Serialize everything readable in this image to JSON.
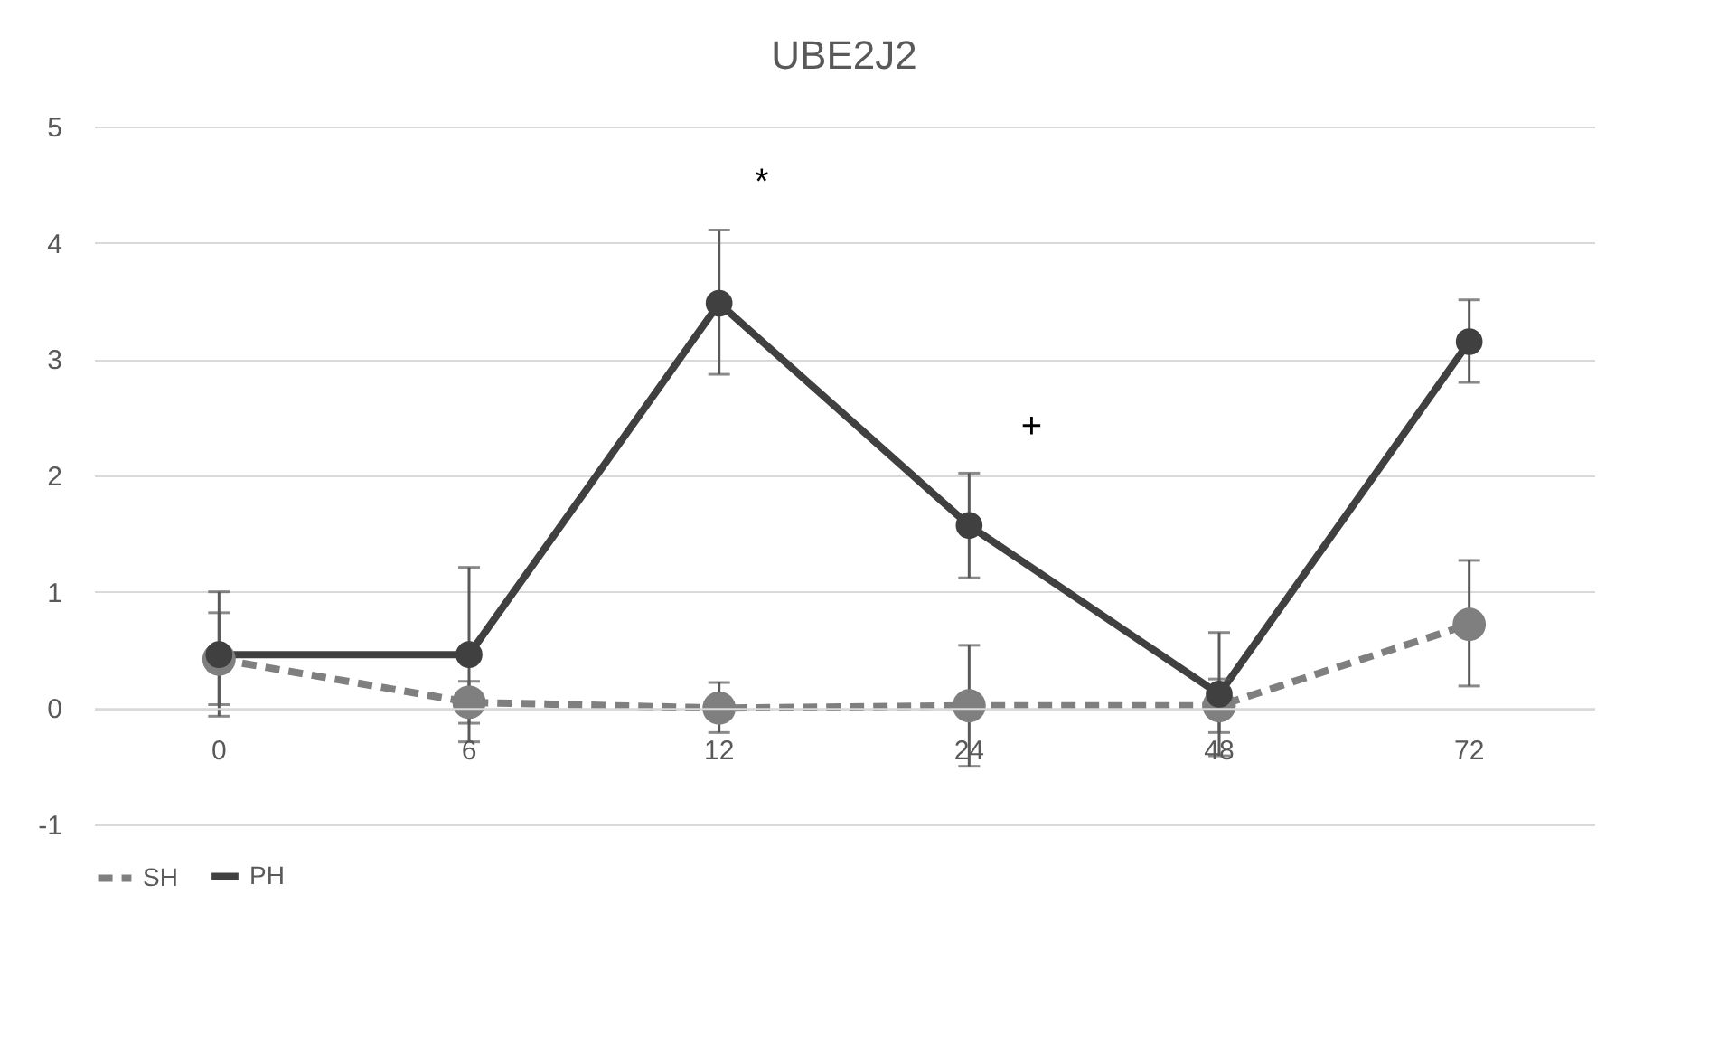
{
  "chart_data": {
    "type": "line",
    "title": "UBE2J2",
    "categories": [
      "0",
      "6",
      "12",
      "24",
      "48",
      "72"
    ],
    "series": [
      {
        "name": "SH",
        "color": "#7f7f7f",
        "line_style": "dashed",
        "values": [
          0.42,
          0.05,
          0.0,
          0.02,
          0.02,
          0.72
        ],
        "errors": [
          [
            0.03,
            0.82
          ],
          [
            -0.13,
            0.23
          ],
          [
            -0.21,
            0.22
          ],
          [
            -0.5,
            0.54
          ],
          [
            -0.21,
            0.25
          ],
          [
            0.19,
            1.27
          ]
        ]
      },
      {
        "name": "PH",
        "color": "#404040",
        "line_style": "solid",
        "values": [
          0.46,
          0.46,
          3.48,
          1.57,
          0.12,
          3.15
        ],
        "errors": [
          [
            -0.07,
            1.0
          ],
          [
            -0.29,
            1.21
          ],
          [
            2.87,
            4.11
          ],
          [
            1.12,
            2.02
          ],
          [
            -0.41,
            0.65
          ],
          [
            2.8,
            3.51
          ]
        ]
      }
    ],
    "ylim": [
      -1,
      5
    ],
    "yticks": [
      -1,
      0,
      1,
      2,
      3,
      4,
      5
    ],
    "grid": "y",
    "legend": "bottom",
    "marker": "circle",
    "annotations": [
      "*",
      "+"
    ]
  }
}
